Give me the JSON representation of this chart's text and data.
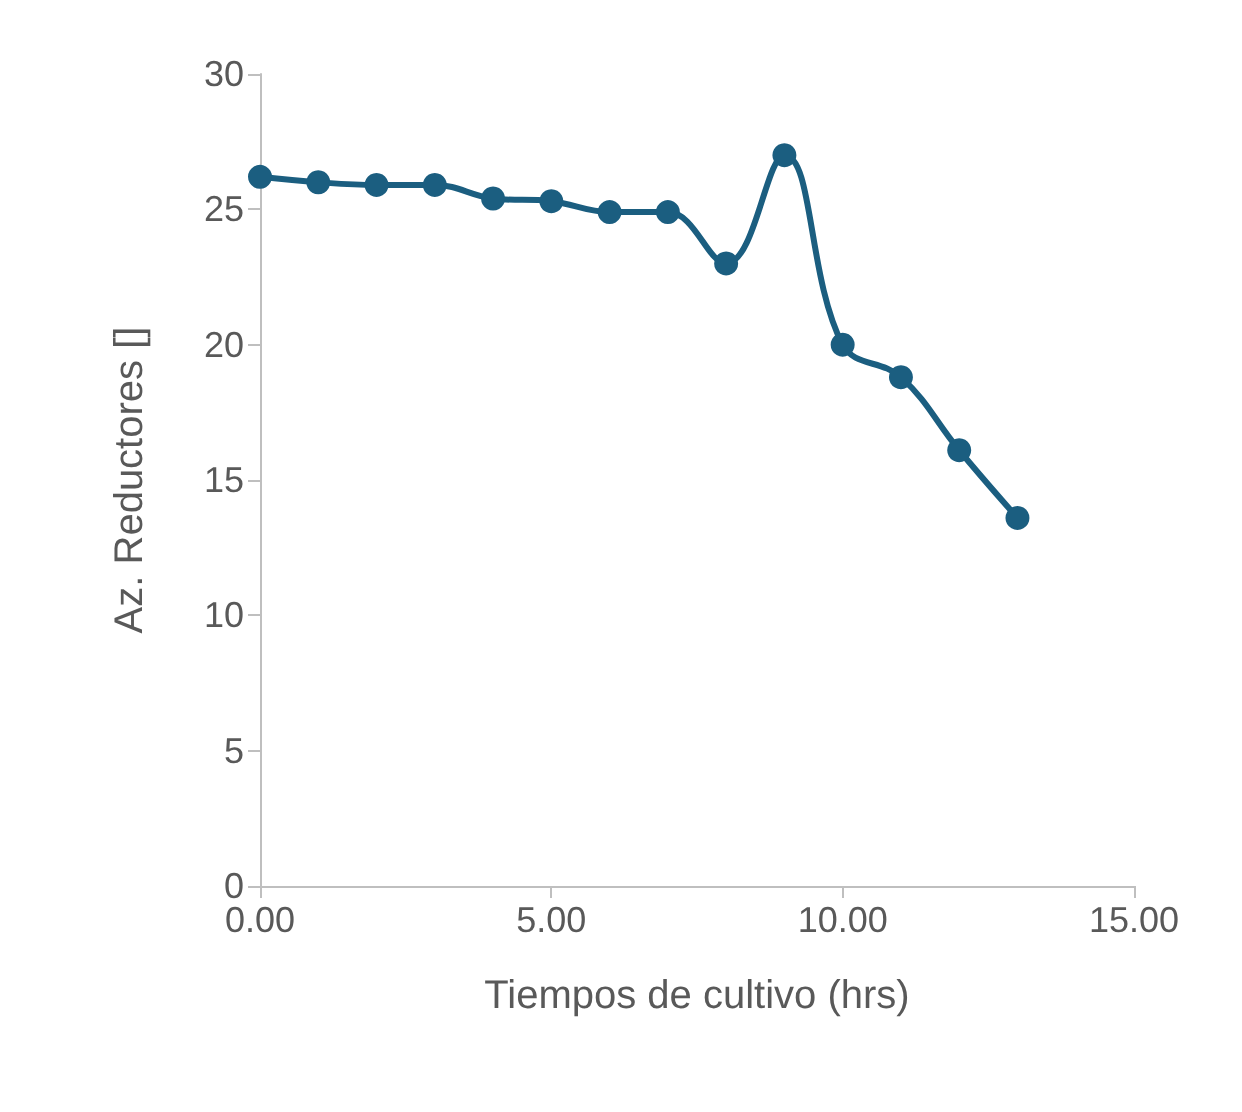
{
  "chart_data": {
    "type": "line",
    "xlabel": "Tiempos de cultivo (hrs)",
    "ylabel": "Az. Reductores []",
    "x": [
      0,
      1,
      2,
      3,
      4,
      5,
      6,
      7,
      8,
      9,
      10,
      11,
      12,
      13
    ],
    "series": [
      {
        "color": "#1b5e80",
        "values": [
          26.2,
          26.0,
          25.9,
          25.9,
          25.4,
          25.3,
          24.9,
          24.9,
          23.0,
          27.0,
          20.0,
          18.8,
          16.1,
          13.6
        ]
      }
    ],
    "xlim": [
      0,
      15
    ],
    "xticks": [
      {
        "value": 0,
        "label": "0.00"
      },
      {
        "value": 5,
        "label": "5.00"
      },
      {
        "value": 10,
        "label": "10.00"
      },
      {
        "value": 15,
        "label": "15.00"
      }
    ],
    "ylim": [
      0,
      30
    ],
    "yticks": [
      0,
      5,
      10,
      15,
      20,
      25,
      30
    ],
    "grid": false,
    "marker": "circle",
    "line_style": "solid"
  }
}
